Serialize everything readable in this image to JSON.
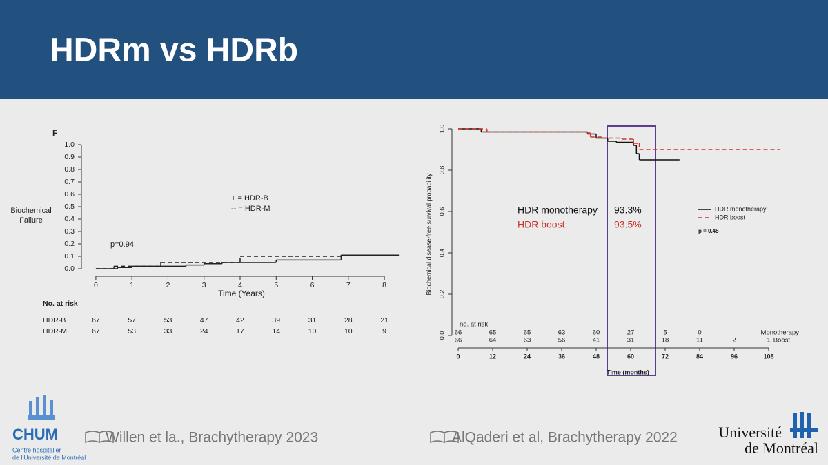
{
  "slide": {
    "title": "HDRm vs HDRb",
    "citations": [
      "Willen et la., Brachytherapy 2023",
      "AlQaderi et al, Brachytherapy 2022"
    ],
    "logos": {
      "chum": "CHUM",
      "chum_sub": [
        "Centre hospitalier",
        "de l'Université de Montréal"
      ],
      "udem": [
        "Université",
        "de Montréal"
      ]
    }
  },
  "chart_data": [
    {
      "type": "step",
      "panel_label": "F",
      "xlabel": "Time (Years)",
      "ylabel": [
        "Biochemical",
        "Failure"
      ],
      "xlim": [
        -0.4,
        8.4
      ],
      "ylim": [
        -0.05,
        1.05
      ],
      "xticks": [
        0,
        1,
        2,
        3,
        4,
        5,
        6,
        7,
        8
      ],
      "yticks": [
        {
          "value": 0,
          "label": "0.0"
        },
        0.1,
        0.2,
        0.3,
        0.4,
        0.5,
        0.6,
        0.7,
        0.8,
        0.9,
        {
          "value": 1,
          "label": "1.0"
        }
      ],
      "annotation": "p=0.94",
      "series": [
        {
          "name": "+ = HDR-B",
          "color": "#222222",
          "dash": true,
          "x": [
            0,
            0.5,
            1.8,
            4,
            6.8,
            8.4
          ],
          "values": [
            0,
            0.02,
            0.05,
            0.1,
            0.11,
            0.11
          ]
        },
        {
          "name": "-- = HDR-M",
          "color": "#222222",
          "dash": false,
          "x": [
            0,
            0.6,
            1.0,
            2.5,
            3.0,
            3.5,
            5.0,
            6.8,
            8.4
          ],
          "values": [
            0,
            0.01,
            0.02,
            0.03,
            0.04,
            0.05,
            0.07,
            0.11,
            0.11
          ]
        }
      ],
      "risk_table": {
        "title": "No. at risk",
        "rows": [
          {
            "name": "HDR-B",
            "values": [
              67,
              57,
              53,
              47,
              42,
              39,
              31,
              28,
              21
            ]
          },
          {
            "name": "HDR-M",
            "values": [
              67,
              53,
              33,
              24,
              17,
              14,
              10,
              10,
              9
            ]
          }
        ]
      }
    },
    {
      "type": "step",
      "xlabel": "Time (months)",
      "ylabel": "Biochemical disease-free survival probability",
      "xlim": [
        -2,
        113
      ],
      "ylim": [
        -0.06,
        1.0
      ],
      "xticks": [
        0,
        12,
        24,
        36,
        48,
        60,
        72,
        84,
        96,
        108
      ],
      "yticks": [
        {
          "value": 0,
          "label": "0.0"
        },
        0.2,
        0.4,
        0.6,
        0.8,
        {
          "value": 1,
          "label": "1.0"
        }
      ],
      "annotation": "p = 0.45",
      "highlight": [
        {
          "label": "HDR monotherapy",
          "value": "93.3%",
          "color": "#111111"
        },
        {
          "label": "HDR boost:",
          "value": "93.5%",
          "color": "#c8332b"
        }
      ],
      "series": [
        {
          "name": "HDR monotherapy",
          "color": "#111111",
          "dash": false,
          "x": [
            0,
            8,
            45,
            48,
            52,
            55,
            61,
            62,
            63,
            77
          ],
          "values": [
            1,
            0.985,
            0.975,
            0.955,
            0.94,
            0.935,
            0.92,
            0.88,
            0.85,
            0.85
          ]
        },
        {
          "name": "HDR boost",
          "color": "#d8332b",
          "dash": true,
          "x": [
            0,
            10,
            45,
            46,
            50,
            57,
            61,
            63,
            112
          ],
          "values": [
            1,
            0.985,
            0.98,
            0.96,
            0.955,
            0.95,
            0.93,
            0.9,
            0.9
          ]
        }
      ],
      "risk_table": {
        "title": "no. at risk",
        "rows": [
          {
            "name": "Monotherapy",
            "values": [
              66,
              65,
              65,
              63,
              60,
              27,
              5,
              0
            ]
          },
          {
            "name": "Boost",
            "values": [
              66,
              64,
              63,
              56,
              41,
              31,
              18,
              11,
              2,
              1
            ]
          }
        ]
      }
    }
  ]
}
